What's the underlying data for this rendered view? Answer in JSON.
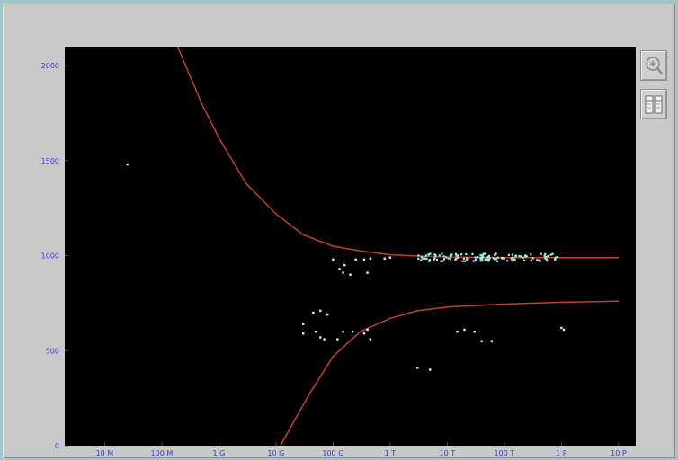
{
  "toolbar": {
    "zoom_icon": "zoom-in-icon",
    "panel_icon": "panels-icon"
  },
  "colors": {
    "plot_background": "#000000",
    "curve": "#c0412b",
    "points": "#e6f2f2",
    "dense_points": "#9ff0f0",
    "tick_labels": "#3b3bd1",
    "window": "#c9c9c9"
  },
  "chart_data": {
    "type": "scatter",
    "title": "",
    "xlabel": "",
    "ylabel": "",
    "xscale": "log",
    "grid": false,
    "x_tick_labels": [
      "10 M",
      "100 M",
      "1 G",
      "10 G",
      "100 G",
      "1 T",
      "10 T",
      "100 T",
      "1 P",
      "10 P"
    ],
    "x_ticks": [
      10000000.0,
      100000000.0,
      1000000000.0,
      10000000000.0,
      100000000000.0,
      1000000000000.0,
      10000000000000.0,
      100000000000000.0,
      1000000000000000.0,
      1e+16
    ],
    "xlim": [
      2000000.0,
      2e+16
    ],
    "y_tick_labels": [
      "2000",
      "1500",
      "1000",
      "500",
      "0"
    ],
    "y_ticks": [
      2000,
      1500,
      1000,
      500,
      0
    ],
    "ylim": [
      0,
      2100
    ],
    "upper_bound_curve": [
      [
        190000000.0,
        2100
      ],
      [
        500000000.0,
        1800
      ],
      [
        1000000000.0,
        1620
      ],
      [
        3000000000.0,
        1380
      ],
      [
        10000000000.0,
        1220
      ],
      [
        30000000000.0,
        1110
      ],
      [
        100000000000.0,
        1050
      ],
      [
        300000000000.0,
        1025
      ],
      [
        1000000000000.0,
        1005
      ],
      [
        3000000000000.0,
        998
      ],
      [
        10000000000000.0,
        993
      ],
      [
        100000000000000.0,
        990
      ],
      [
        1000000000000000.0,
        990
      ],
      [
        1e+16,
        990
      ]
    ],
    "lower_bound_curve": [
      [
        12000000000.0,
        0
      ],
      [
        20000000000.0,
        120
      ],
      [
        40000000000.0,
        280
      ],
      [
        100000000000.0,
        470
      ],
      [
        300000000000.0,
        600
      ],
      [
        1000000000000.0,
        670
      ],
      [
        3000000000000.0,
        710
      ],
      [
        10000000000000.0,
        730
      ],
      [
        100000000000000.0,
        745
      ],
      [
        1000000000000000.0,
        755
      ],
      [
        1e+16,
        760
      ]
    ],
    "points": [
      [
        25000000.0,
        1480
      ],
      [
        100000000000.0,
        980
      ],
      [
        160000000000.0,
        950
      ],
      [
        130000000000.0,
        930
      ],
      [
        250000000000.0,
        980
      ],
      [
        350000000000.0,
        980
      ],
      [
        450000000000.0,
        985
      ],
      [
        800000000000.0,
        985
      ],
      [
        150000000000.0,
        910
      ],
      [
        200000000000.0,
        900
      ],
      [
        400000000000.0,
        910
      ],
      [
        45000000000.0,
        700
      ],
      [
        60000000000.0,
        710
      ],
      [
        80000000000.0,
        690
      ],
      [
        30000000000.0,
        640
      ],
      [
        30000000000.0,
        590
      ],
      [
        50000000000.0,
        600
      ],
      [
        60000000000.0,
        570
      ],
      [
        70000000000.0,
        560
      ],
      [
        120000000000.0,
        560
      ],
      [
        150000000000.0,
        600
      ],
      [
        220000000000.0,
        600
      ],
      [
        350000000000.0,
        590
      ],
      [
        400000000000.0,
        610
      ],
      [
        450000000000.0,
        560
      ],
      [
        1000000000000.0,
        990
      ],
      [
        15000000000000.0,
        600
      ],
      [
        20000000000000.0,
        610
      ],
      [
        30000000000000.0,
        600
      ],
      [
        40000000000000.0,
        550
      ],
      [
        60000000000000.0,
        550
      ],
      [
        1000000000000000.0,
        620
      ],
      [
        1100000000000000.0,
        610
      ],
      [
        3000000000000.0,
        410
      ],
      [
        5000000000000.0,
        400
      ]
    ],
    "dense_band": {
      "x_range": [
        3000000000000.0,
        1000000000000000.0
      ],
      "y_range": [
        970,
        1010
      ],
      "count": 130
    }
  }
}
